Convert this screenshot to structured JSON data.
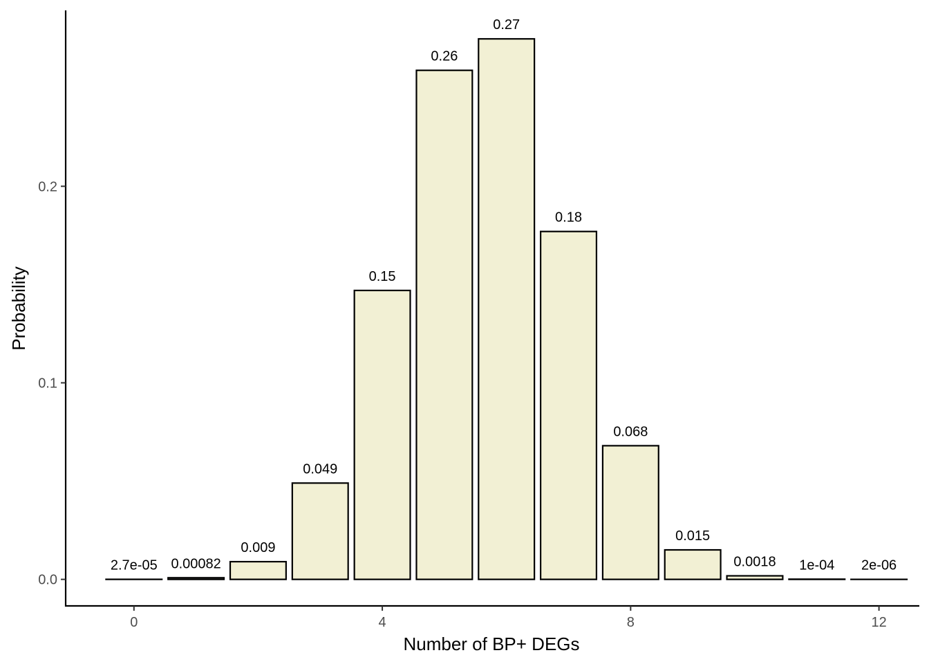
{
  "chart_data": {
    "type": "bar",
    "x": [
      0,
      1,
      2,
      3,
      4,
      5,
      6,
      7,
      8,
      9,
      10,
      11,
      12
    ],
    "values": [
      2.7e-05,
      0.00082,
      0.009,
      0.049,
      0.147,
      0.259,
      0.275,
      0.177,
      0.068,
      0.015,
      0.0018,
      0.0001,
      2e-06
    ],
    "data_labels": [
      "2.7e-05",
      "0.00082",
      "0.009",
      "0.049",
      "0.15",
      "0.26",
      "0.27",
      "0.18",
      "0.068",
      "0.015",
      "0.0018",
      "1e-04",
      "2e-06"
    ],
    "xlabel": "Number of BP+ DEGs",
    "ylabel": "Probability",
    "x_ticks": [
      0,
      4,
      8,
      12
    ],
    "x_tick_labels": [
      "0",
      "4",
      "8",
      "12"
    ],
    "y_ticks": [
      0.0,
      0.1,
      0.2
    ],
    "y_tick_labels": [
      "0.0",
      "0.1",
      "0.2"
    ],
    "xlim": [
      -1.1,
      12.65
    ],
    "ylim": [
      -0.0135,
      0.2895
    ],
    "grid": false,
    "colors": {
      "bar_fill": "#F2F0D4",
      "bar_stroke": "#000000",
      "axis": "#000000",
      "tick_text": "#4d4d4d"
    }
  }
}
